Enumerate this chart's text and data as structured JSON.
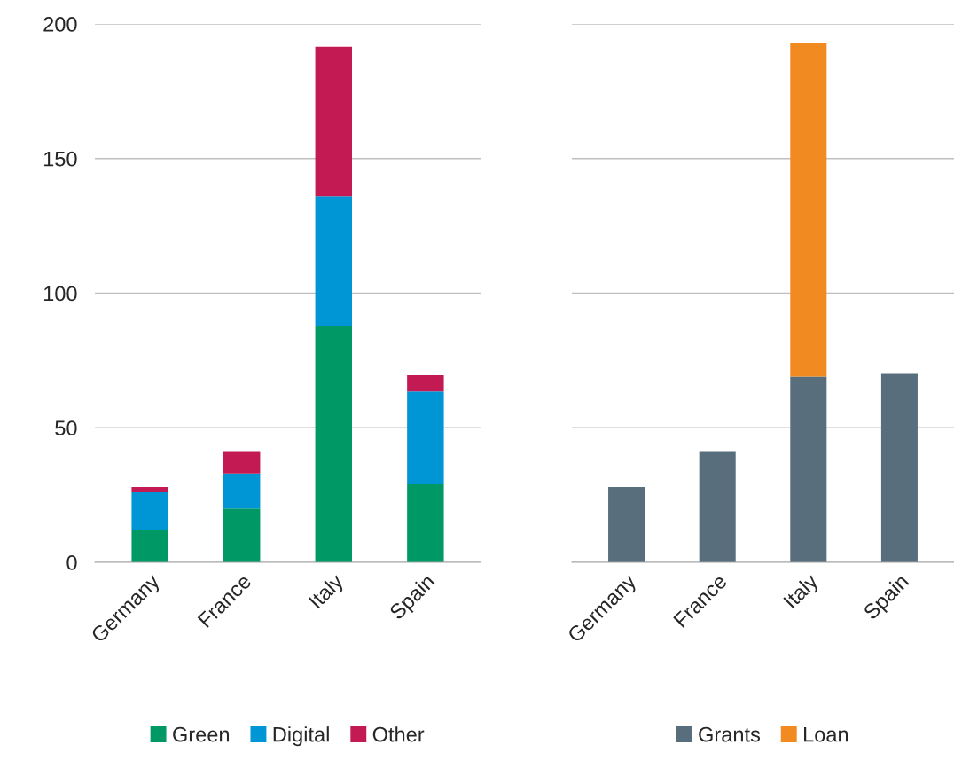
{
  "chart_data": [
    {
      "type": "bar",
      "stacked": true,
      "categories": [
        "Germany",
        "France",
        "Italy",
        "Spain"
      ],
      "ylim": [
        0,
        200
      ],
      "yticks": [
        0,
        50,
        100,
        150,
        200
      ],
      "grid": "y",
      "legend": "bottom",
      "series": [
        {
          "name": "Green",
          "color": "#009966",
          "values": [
            12,
            20,
            88,
            29
          ]
        },
        {
          "name": "Digital",
          "color": "#0096d6",
          "values": [
            14,
            13,
            48,
            34.5
          ]
        },
        {
          "name": "Other",
          "color": "#c41a54",
          "values": [
            2,
            8,
            55.5,
            6
          ]
        }
      ]
    },
    {
      "type": "bar",
      "stacked": true,
      "categories": [
        "Germany",
        "France",
        "Italy",
        "Spain"
      ],
      "ylim": [
        0,
        200
      ],
      "yticks": [
        0,
        50,
        100,
        150,
        200
      ],
      "tick_labels": "x",
      "grid": "y",
      "legend": "bottom",
      "series": [
        {
          "name": "Grants",
          "color": "#596e7c",
          "values": [
            28,
            41,
            69,
            70
          ]
        },
        {
          "name": "Loan",
          "color": "#f28a22",
          "values": [
            null,
            null,
            124,
            null
          ]
        }
      ]
    }
  ]
}
